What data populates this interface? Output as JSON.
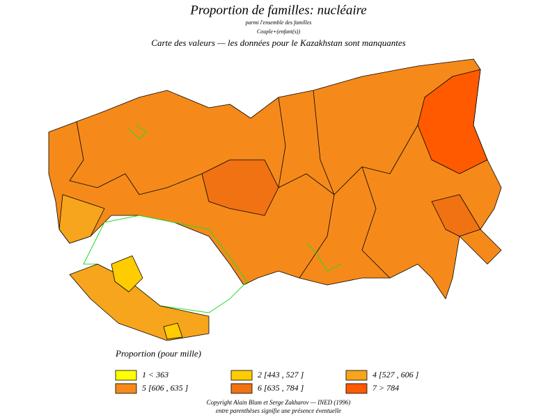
{
  "header": {
    "title": "Proportion de familles: nucléaire",
    "subtitle": "parmi l'ensemble des familles",
    "note": "Couple+(enfant(s))",
    "caption": "Carte des valeurs — les données pour le Kazakhstan sont manquantes"
  },
  "legend": {
    "title": "Proportion (pour mille)",
    "items": [
      {
        "label": "1  <  363",
        "color": "#ffff00"
      },
      {
        "label": "2 [443 , 527 ]",
        "color": "#ffcc00"
      },
      {
        "label": "4 [527 , 606 ]",
        "color": "#f7a51c"
      },
      {
        "label": "5 [606 , 635 ]",
        "color": "#f58a1a"
      },
      {
        "label": "6 [635 , 784 ]",
        "color": "#f07212"
      },
      {
        "label": "7  >  784",
        "color": "#ff5a00"
      }
    ]
  },
  "footer": [
    "Copyright Alain Blum et Serge Zakharov — INED (1996)",
    "entre parenthèses signifie une présence éventuelle"
  ]
}
